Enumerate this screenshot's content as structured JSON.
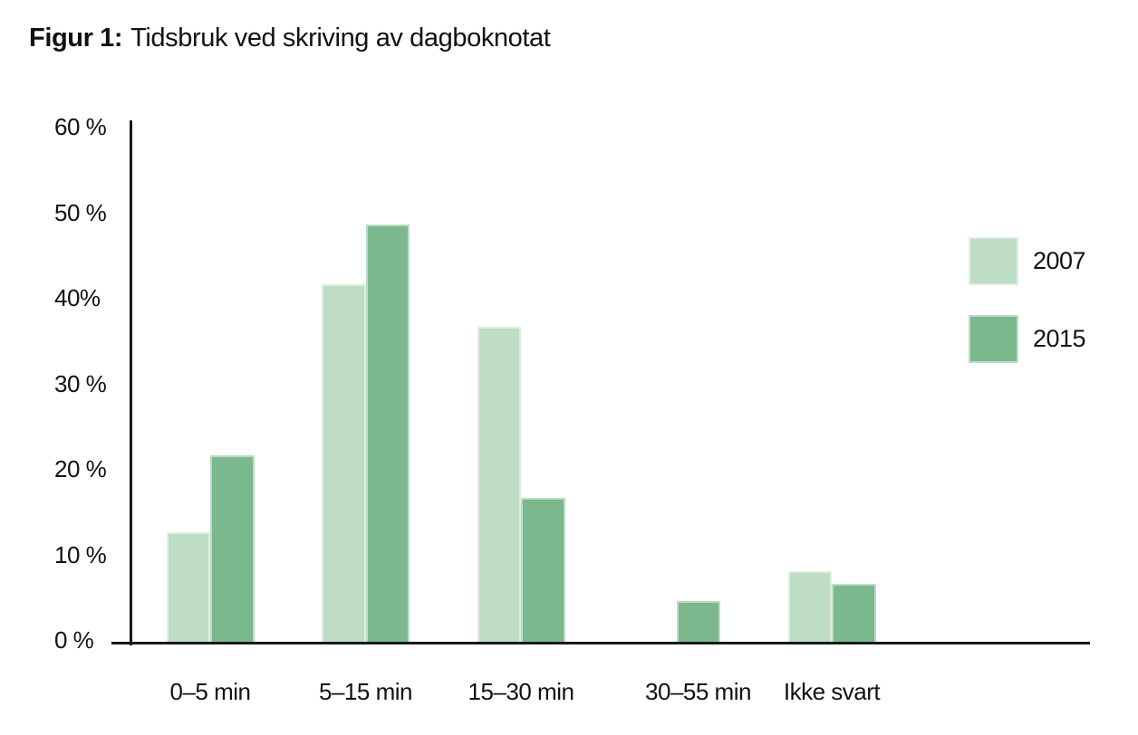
{
  "figure": {
    "title_prefix": "Figur 1:",
    "title_text": "Tidsbruk ved skriving av dagboknotat"
  },
  "chart_data": {
    "type": "bar",
    "title": "Figur 1: Tidsbruk ved skriving av dagboknotat",
    "categories": [
      "0–5 min",
      "5–15 min",
      "15–30 min",
      "30–55 min",
      "Ikke svart"
    ],
    "series": [
      {
        "name": "2007",
        "color": "#bfdcc5",
        "values": [
          13,
          42,
          37,
          0,
          8.5
        ]
      },
      {
        "name": "2015",
        "color": "#7bb88d",
        "values": [
          22,
          49,
          17,
          5,
          7
        ]
      }
    ],
    "xlabel": "",
    "ylabel": "",
    "ylim": [
      0,
      60
    ],
    "yticks": [
      {
        "value": 0,
        "label": "0 %"
      },
      {
        "value": 10,
        "label": "10 %"
      },
      {
        "value": 20,
        "label": "20 %"
      },
      {
        "value": 30,
        "label": "30 %"
      },
      {
        "value": 40,
        "label": "40%"
      },
      {
        "value": 50,
        "label": "50 %"
      },
      {
        "value": 60,
        "label": "60 %"
      }
    ],
    "grid": false,
    "legend_position": "right",
    "axis_color": "#1a1a1a",
    "text_color": "#111111",
    "background_color": "#ffffff"
  }
}
